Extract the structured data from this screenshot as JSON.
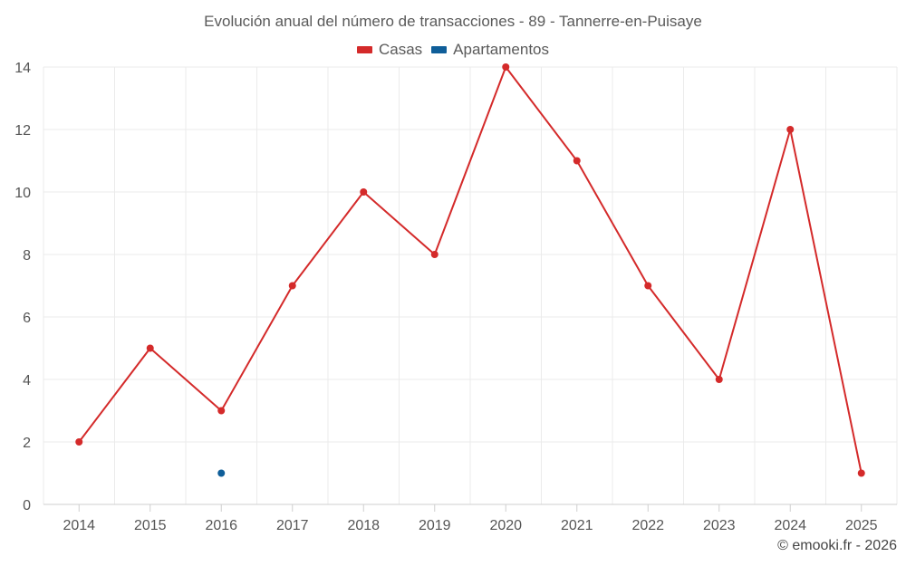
{
  "chart_data": {
    "type": "line",
    "title": "Evolución anual del número de transacciones - 89 - Tannerre-en-Puisaye",
    "categories": [
      "2014",
      "2015",
      "2016",
      "2017",
      "2018",
      "2019",
      "2020",
      "2021",
      "2022",
      "2023",
      "2024",
      "2025"
    ],
    "ylim": [
      0,
      14
    ],
    "yticks": [
      0,
      2,
      4,
      6,
      8,
      10,
      12,
      14
    ],
    "grid": true,
    "legend_position": "top-center",
    "series": [
      {
        "name": "Casas",
        "color": "#d42a2a",
        "values": [
          2,
          5,
          3,
          7,
          10,
          8,
          14,
          11,
          7,
          4,
          12,
          1
        ]
      },
      {
        "name": "Apartamentos",
        "color": "#0f5e99",
        "values": [
          null,
          null,
          1,
          null,
          null,
          null,
          null,
          null,
          null,
          null,
          null,
          null
        ]
      }
    ]
  },
  "legend": [
    {
      "label": "Casas",
      "color": "#d42a2a"
    },
    {
      "label": "Apartamentos",
      "color": "#0f5e99"
    }
  ],
  "copyright": "© emooki.fr - 2026"
}
